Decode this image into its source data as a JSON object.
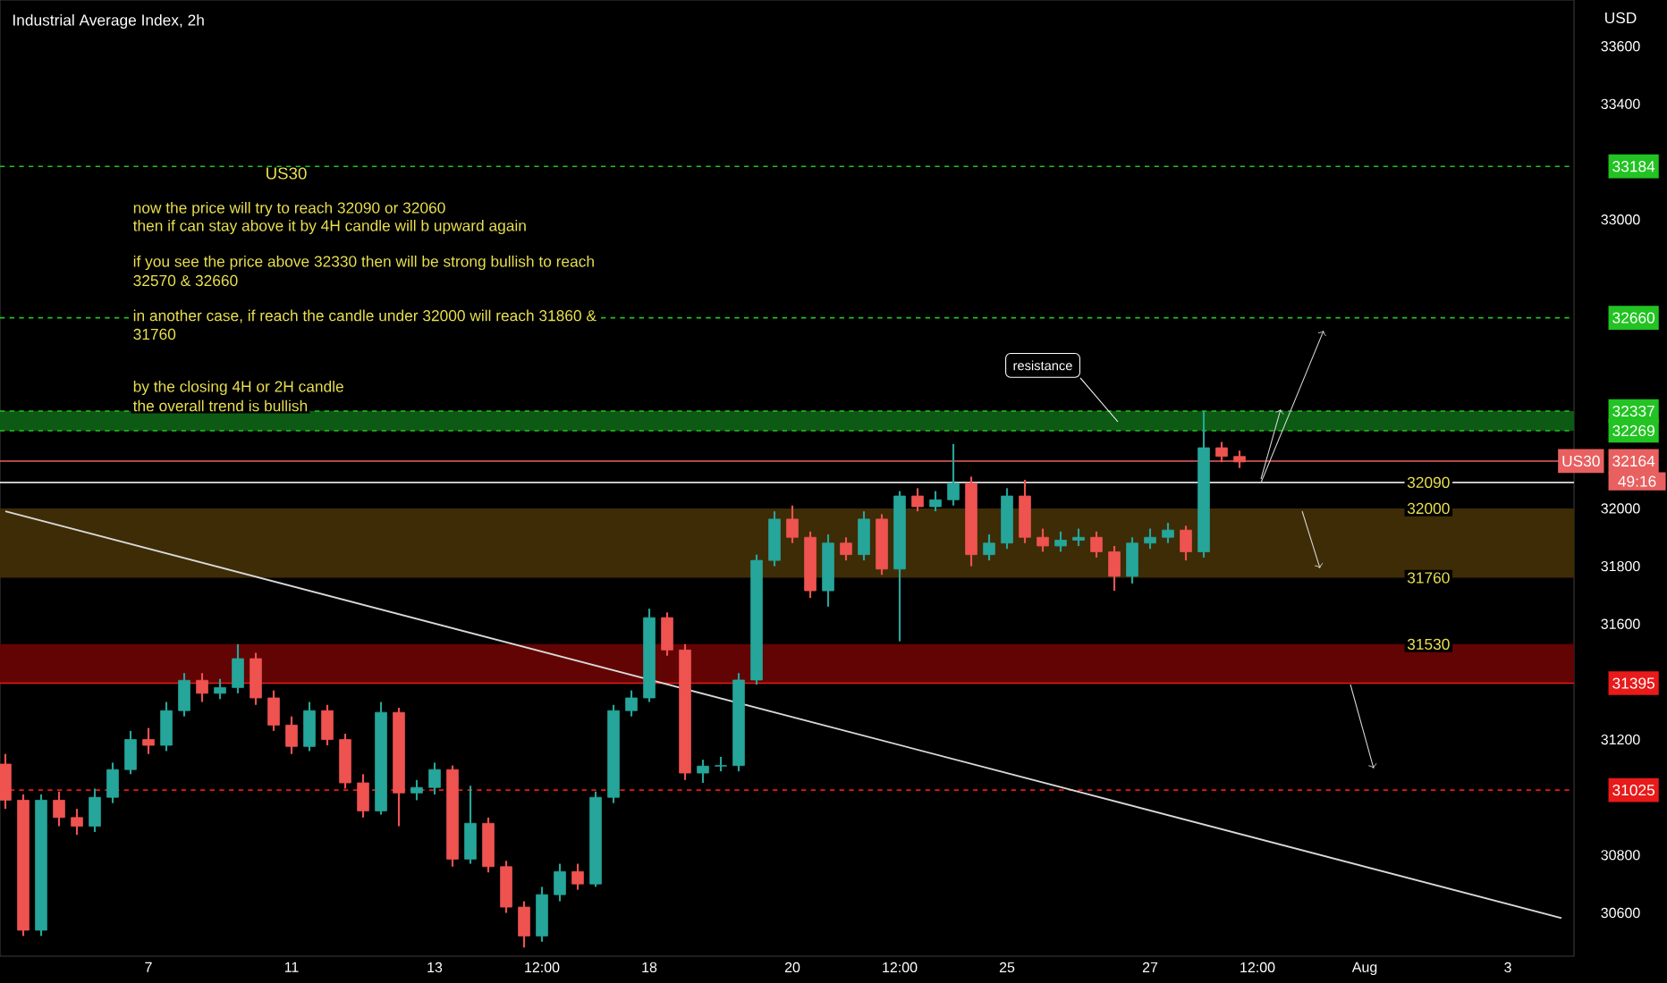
{
  "chart_data": {
    "type": "candlestick",
    "title": "Industrial Average Index, 2h",
    "ylabel": "USD",
    "categories": [
      null,
      null,
      null,
      null,
      null,
      null,
      null,
      null,
      "7",
      null,
      null,
      null,
      null,
      null,
      null,
      null,
      "11",
      null,
      null,
      null,
      null,
      null,
      null,
      null,
      "13",
      null,
      null,
      null,
      null,
      null,
      "12:00",
      null,
      null,
      null,
      null,
      null,
      "18",
      null,
      null,
      null,
      null,
      null,
      null,
      null,
      "20",
      null,
      null,
      null,
      null,
      null,
      "12:00",
      null,
      null,
      null,
      null,
      null,
      "25",
      null,
      null,
      null,
      null,
      null,
      null,
      null,
      "27",
      null,
      null,
      null,
      null,
      null,
      "12:00",
      null,
      null,
      null,
      null,
      null,
      "Aug",
      null,
      null,
      null,
      null,
      null,
      null,
      null,
      "3",
      null,
      null,
      null
    ],
    "ohlc": [
      [
        31115,
        31150,
        30960,
        30990
      ],
      [
        30990,
        31010,
        30520,
        30540
      ],
      [
        30540,
        31010,
        30520,
        30990
      ],
      [
        30990,
        31020,
        30900,
        30930
      ],
      [
        30930,
        30960,
        30870,
        30900
      ],
      [
        30900,
        31030,
        30880,
        31000
      ],
      [
        31000,
        31120,
        30980,
        31096
      ],
      [
        31096,
        31230,
        31080,
        31200
      ],
      [
        31200,
        31240,
        31150,
        31180
      ],
      [
        31180,
        31330,
        31160,
        31300
      ],
      [
        31300,
        31430,
        31280,
        31405
      ],
      [
        31405,
        31430,
        31330,
        31360
      ],
      [
        31360,
        31410,
        31340,
        31380
      ],
      [
        31380,
        31530,
        31360,
        31480
      ],
      [
        31480,
        31500,
        31320,
        31344
      ],
      [
        31344,
        31370,
        31230,
        31250
      ],
      [
        31250,
        31280,
        31150,
        31176
      ],
      [
        31176,
        31330,
        31160,
        31300
      ],
      [
        31300,
        31320,
        31180,
        31200
      ],
      [
        31200,
        31220,
        31030,
        31050
      ],
      [
        31050,
        31080,
        30930,
        30953
      ],
      [
        30953,
        31330,
        30940,
        31294
      ],
      [
        31294,
        31310,
        30900,
        31015
      ],
      [
        31015,
        31060,
        30990,
        31034
      ],
      [
        31034,
        31120,
        31010,
        31096
      ],
      [
        31096,
        31110,
        30760,
        30786
      ],
      [
        30786,
        31040,
        30770,
        30910
      ],
      [
        30910,
        30930,
        30740,
        30760
      ],
      [
        30760,
        30780,
        30600,
        30620
      ],
      [
        30620,
        30640,
        30480,
        30520
      ],
      [
        30520,
        30690,
        30500,
        30663
      ],
      [
        30663,
        30770,
        30640,
        30743
      ],
      [
        30743,
        30770,
        30680,
        30700
      ],
      [
        30700,
        31020,
        30690,
        31000
      ],
      [
        31000,
        31320,
        30980,
        31300
      ],
      [
        31300,
        31370,
        31280,
        31344
      ],
      [
        31344,
        31653,
        31330,
        31622
      ],
      [
        31622,
        31640,
        31490,
        31510
      ],
      [
        31510,
        31530,
        31060,
        31084
      ],
      [
        31084,
        31130,
        31050,
        31108
      ],
      [
        31108,
        31140,
        31090,
        31110
      ],
      [
        31110,
        31430,
        31090,
        31406
      ],
      [
        31406,
        31840,
        31390,
        31820
      ],
      [
        31820,
        31990,
        31800,
        31963
      ],
      [
        31963,
        32010,
        31880,
        31900
      ],
      [
        31900,
        31920,
        31690,
        31715
      ],
      [
        31715,
        31910,
        31660,
        31880
      ],
      [
        31880,
        31900,
        31820,
        31840
      ],
      [
        31840,
        31990,
        31820,
        31963
      ],
      [
        31963,
        31980,
        31770,
        31790
      ],
      [
        31790,
        32060,
        31540,
        32043
      ],
      [
        32043,
        32070,
        31990,
        32006
      ],
      [
        32006,
        32060,
        31990,
        32030
      ],
      [
        32030,
        32223,
        32010,
        32087
      ],
      [
        32087,
        32110,
        31800,
        31840
      ],
      [
        31840,
        31910,
        31820,
        31880
      ],
      [
        31880,
        32070,
        31860,
        32043
      ],
      [
        32043,
        32099,
        31880,
        31900
      ],
      [
        31900,
        31930,
        31850,
        31870
      ],
      [
        31870,
        31920,
        31850,
        31890
      ],
      [
        31890,
        31930,
        31870,
        31900
      ],
      [
        31900,
        31920,
        31830,
        31850
      ],
      [
        31850,
        31870,
        31715,
        31765
      ],
      [
        31765,
        31900,
        31740,
        31880
      ],
      [
        31880,
        31930,
        31860,
        31900
      ],
      [
        31900,
        31950,
        31880,
        31925
      ],
      [
        31925,
        31940,
        31820,
        31850
      ],
      [
        31850,
        32337,
        31830,
        32210
      ],
      [
        32210,
        32230,
        32160,
        32180
      ],
      [
        32180,
        32200,
        32140,
        32161
      ],
      null,
      null,
      null,
      null,
      null,
      null,
      null,
      null,
      null,
      null,
      null,
      null,
      null,
      null,
      null,
      null,
      null,
      null
    ],
    "colors": [
      "#ef5350",
      "#ef5350",
      "#26a69a",
      "#ef5350",
      "#ef5350",
      "#26a69a",
      "#26a69a",
      "#26a69a",
      "#ef5350",
      "#26a69a",
      "#26a69a",
      "#ef5350",
      "#26a69a",
      "#26a69a",
      "#ef5350",
      "#ef5350",
      "#ef5350",
      "#26a69a",
      "#ef5350",
      "#ef5350",
      "#ef5350",
      "#26a69a",
      "#ef5350",
      "#26a69a",
      "#26a69a",
      "#ef5350",
      "#26a69a",
      "#ef5350",
      "#ef5350",
      "#ef5350",
      "#26a69a",
      "#26a69a",
      "#ef5350",
      "#26a69a",
      "#26a69a",
      "#26a69a",
      "#26a69a",
      "#ef5350",
      "#ef5350",
      "#26a69a",
      "#26a69a",
      "#26a69a",
      "#26a69a",
      "#26a69a",
      "#ef5350",
      "#ef5350",
      "#26a69a",
      "#ef5350",
      "#26a69a",
      "#ef5350",
      "#26a69a",
      "#ef5350",
      "#26a69a",
      "#26a69a",
      "#ef5350",
      "#26a69a",
      "#26a69a",
      "#ef5350",
      "#ef5350",
      "#26a69a",
      "#26a69a",
      "#ef5350",
      "#ef5350",
      "#26a69a",
      "#26a69a",
      "#26a69a",
      "#ef5350",
      "#26a69a",
      "#ef5350",
      "#ef5350",
      null,
      null,
      null,
      null,
      null,
      null,
      null,
      null,
      null,
      null,
      null,
      null,
      null,
      null,
      null,
      null,
      null,
      null
    ],
    "series": [
      {
        "type": "line",
        "color": "#d9d9d9",
        "values": [
          31990,
          null,
          null,
          null,
          null,
          null,
          null,
          null,
          null,
          null,
          null,
          null,
          null,
          null,
          null,
          null,
          null,
          null,
          null,
          null,
          null,
          null,
          null,
          null,
          null,
          null,
          null,
          null,
          null,
          null,
          null,
          null,
          null,
          null,
          null,
          null,
          null,
          null,
          null,
          null,
          null,
          null,
          null,
          null,
          null,
          null,
          null,
          null,
          null,
          null,
          null,
          null,
          null,
          null,
          null,
          null,
          null,
          null,
          null,
          null,
          null,
          null,
          null,
          null,
          null,
          null,
          null,
          null,
          null,
          null,
          null,
          null,
          null,
          null,
          null,
          null,
          null,
          null,
          null,
          null,
          null,
          null,
          null,
          null,
          null,
          null,
          null,
          30582
        ]
      }
    ],
    "ylim": [
      30450,
      33760
    ],
    "yticks": [
      30600,
      30800,
      31200,
      31600,
      31800,
      32000,
      33000,
      33400,
      33600
    ],
    "ref_lines": [
      {
        "axis": "y",
        "value": 33184,
        "label": "33184",
        "color": "#22c322",
        "line_style": "dashed"
      },
      {
        "axis": "y",
        "value": 32660,
        "label": "32660",
        "color": "#22c322",
        "line_style": "dashed"
      },
      {
        "axis": "y",
        "value": 32337,
        "label": "32337",
        "color": "#22c322",
        "line_style": "dashed"
      },
      {
        "axis": "y",
        "value": 32269,
        "label": "32269",
        "color": "#22c322",
        "line_style": "dashed"
      },
      {
        "axis": "y",
        "value": 32164,
        "label": "32164",
        "color": "#e86060",
        "line_style": "solid"
      },
      {
        "axis": "y",
        "value": 32090,
        "color": "#e0e0e0",
        "line_style": "solid"
      },
      {
        "axis": "y",
        "value": 31395,
        "label": "31395",
        "color": "#e81a1a",
        "line_style": "solid"
      },
      {
        "axis": "y",
        "value": 31025,
        "label": "31025",
        "color": "#e81a1a",
        "line_style": "dashed"
      }
    ],
    "bands": [
      {
        "axis": "y",
        "from": 32269,
        "to": 32337,
        "color": "#0c5a14"
      },
      {
        "axis": "y",
        "from": 31760,
        "to": 32000,
        "color": "#3e2c06"
      },
      {
        "axis": "y",
        "from": 31395,
        "to": 31530,
        "color": "#620404"
      }
    ],
    "annotations": [
      "US30",
      "now the price will try to reach 32090 or 32060",
      "then if can stay above it by 4H candle will b upward again",
      "if you see the price above 32330 then will be strong bullish to reach",
      "32570 & 32660",
      "in another case,  if reach the candle under 32000 will reach 31860 &",
      "31760",
      "by the closing 4H or 2H candle",
      "the overall trend is bullish",
      {
        "text": "resistance",
        "y": 32495
      },
      {
        "text": "32090",
        "y": 32090
      },
      {
        "text": "32000",
        "y": 32000
      },
      {
        "text": "31760",
        "y": 31760
      },
      {
        "text": "31530",
        "y": 31530
      },
      {
        "text": "US30",
        "y": 32164
      },
      "49:16"
    ]
  }
}
